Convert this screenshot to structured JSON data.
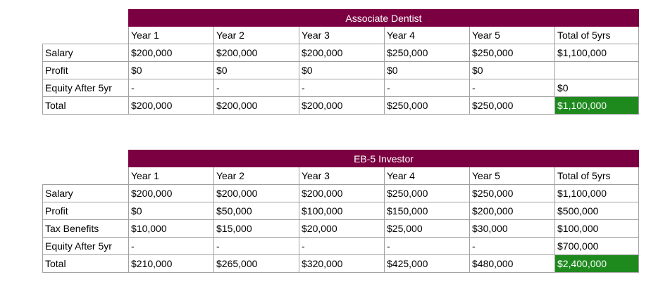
{
  "tables": [
    {
      "title": "Associate Dentist",
      "headers": [
        "Year 1",
        "Year 2",
        "Year 3",
        "Year 4",
        "Year 5",
        "Total of 5yrs"
      ],
      "rows": [
        {
          "label": "Salary",
          "cells": [
            "$200,000",
            "$200,000",
            "$200,000",
            "$250,000",
            "$250,000",
            "$1,100,000"
          ]
        },
        {
          "label": "Profit",
          "cells": [
            "$0",
            "$0",
            "$0",
            "$0",
            "$0",
            ""
          ]
        },
        {
          "label": "Equity After 5yr",
          "cells": [
            "-",
            "-",
            "-",
            "-",
            "-",
            "$0"
          ]
        },
        {
          "label": "Total",
          "cells": [
            "$200,000",
            "$200,000",
            "$200,000",
            "$250,000",
            "$250,000",
            "$1,100,000"
          ]
        }
      ]
    },
    {
      "title": "EB-5 Investor",
      "headers": [
        "Year 1",
        "Year 2",
        "Year 3",
        "Year 4",
        "Year 5",
        "Total of 5yrs"
      ],
      "rows": [
        {
          "label": "Salary",
          "cells": [
            "$200,000",
            "$200,000",
            "$200,000",
            "$250,000",
            "$250,000",
            "$1,100,000"
          ]
        },
        {
          "label": "Profit",
          "cells": [
            "$0",
            "$50,000",
            "$100,000",
            "$150,000",
            "$200,000",
            "$500,000"
          ]
        },
        {
          "label": "Tax Benefits",
          "cells": [
            "$10,000",
            "$15,000",
            "$20,000",
            "$25,000",
            "$30,000",
            "$100,000"
          ]
        },
        {
          "label": "Equity After 5yr",
          "cells": [
            "-",
            "-",
            "-",
            "-",
            "-",
            "$700,000"
          ]
        },
        {
          "label": "Total",
          "cells": [
            "$210,000",
            "$265,000",
            "$320,000",
            "$425,000",
            "$480,000",
            "$2,400,000"
          ]
        }
      ]
    }
  ],
  "colors": {
    "title_bg": "#7b0041",
    "title_text": "#ffffff",
    "total_highlight_bg": "#1e8a1e",
    "grid": "#a0a0a0"
  }
}
